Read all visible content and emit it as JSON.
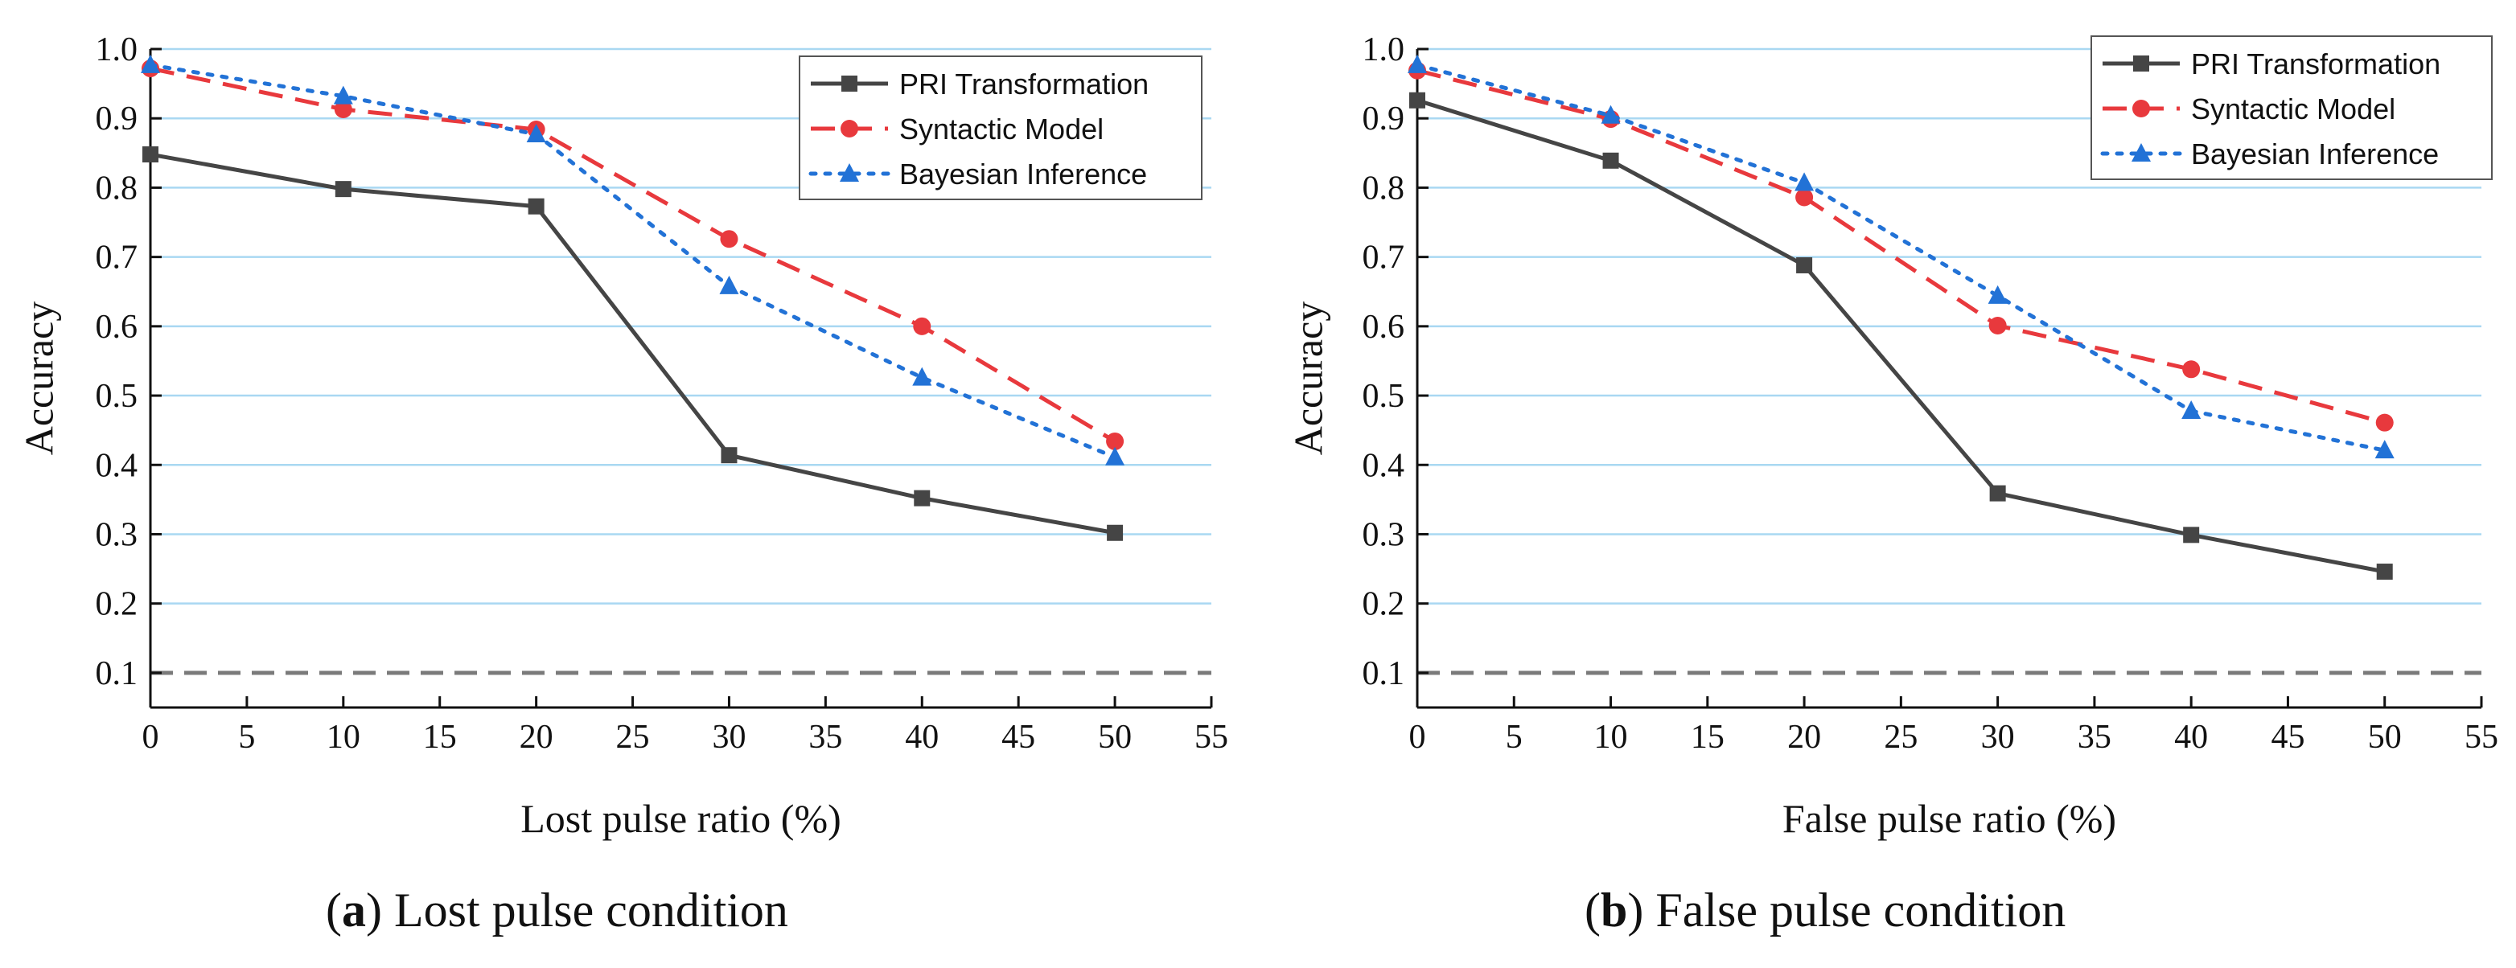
{
  "chart_data": [
    {
      "type": "line",
      "caption_letter": "a",
      "caption": "Lost pulse condition",
      "xlabel": "Lost pulse ratio (%)",
      "ylabel": "Accuracy",
      "xlim": [
        0,
        55
      ],
      "ylim": [
        0.05,
        1.0
      ],
      "xticks": [
        0,
        5,
        10,
        15,
        20,
        25,
        30,
        35,
        40,
        45,
        50,
        55
      ],
      "yticks": [
        0.1,
        0.2,
        0.3,
        0.4,
        0.5,
        0.6,
        0.7,
        0.8,
        0.9,
        1.0
      ],
      "grid": "horizontal",
      "legend_position": "top-right",
      "reference_line": 0.1,
      "x": [
        0,
        10,
        20,
        30,
        40,
        50
      ],
      "series": [
        {
          "name": "PRI Transformation",
          "values": [
            0.848,
            0.798,
            0.773,
            0.414,
            0.352,
            0.302
          ],
          "color": "#454545",
          "style": "solid",
          "marker": "square"
        },
        {
          "name": "Syntactic Model",
          "values": [
            0.972,
            0.913,
            0.884,
            0.726,
            0.6,
            0.434
          ],
          "color": "#e8393d",
          "style": "dashed",
          "marker": "circle"
        },
        {
          "name": "Bayesian Inference",
          "values": [
            0.977,
            0.932,
            0.877,
            0.658,
            0.526,
            0.411
          ],
          "color": "#2272d6",
          "style": "dotted",
          "marker": "triangle"
        }
      ]
    },
    {
      "type": "line",
      "caption_letter": "b",
      "caption": "False pulse condition",
      "xlabel": "False pulse ratio (%)",
      "ylabel": "Accuracy",
      "xlim": [
        0,
        55
      ],
      "ylim": [
        0.05,
        1.0
      ],
      "xticks": [
        0,
        5,
        10,
        15,
        20,
        25,
        30,
        35,
        40,
        45,
        50,
        55
      ],
      "yticks": [
        0.1,
        0.2,
        0.3,
        0.4,
        0.5,
        0.6,
        0.7,
        0.8,
        0.9,
        1.0
      ],
      "grid": "horizontal",
      "legend_position": "top-right",
      "reference_line": 0.1,
      "x": [
        0,
        10,
        20,
        30,
        40,
        50
      ],
      "series": [
        {
          "name": "PRI Transformation",
          "values": [
            0.926,
            0.839,
            0.688,
            0.359,
            0.299,
            0.246
          ],
          "color": "#454545",
          "style": "solid",
          "marker": "square"
        },
        {
          "name": "Syntactic Model",
          "values": [
            0.969,
            0.899,
            0.786,
            0.601,
            0.538,
            0.461
          ],
          "color": "#e8393d",
          "style": "dashed",
          "marker": "circle"
        },
        {
          "name": "Bayesian Inference",
          "values": [
            0.977,
            0.904,
            0.807,
            0.644,
            0.478,
            0.421
          ],
          "color": "#2272d6",
          "style": "dotted",
          "marker": "triangle"
        }
      ]
    }
  ]
}
